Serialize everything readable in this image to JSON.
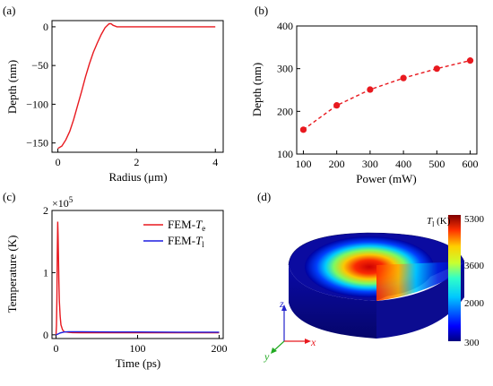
{
  "panels": {
    "a": "(a)",
    "b": "(b)",
    "c": "(c)",
    "d": "(d)"
  },
  "chart_data": [
    {
      "type": "line",
      "panel": "(a)",
      "xlabel": "Radius (μm)",
      "ylabel": "Depth (nm)",
      "xlim": [
        -0.15,
        4.2
      ],
      "ylim": [
        -162,
        8
      ],
      "xticks": [
        "0",
        "2",
        "4"
      ],
      "yticks": [
        "0",
        "−50",
        "−100",
        "−150"
      ],
      "color": "#e8191f",
      "series": [
        {
          "x": [
            0,
            0.1,
            0.2,
            0.3,
            0.4,
            0.5,
            0.6,
            0.7,
            0.8,
            0.9,
            1.0,
            1.1,
            1.2,
            1.3,
            1.35,
            1.4,
            1.5,
            1.6,
            2.0,
            3.0,
            4.0
          ],
          "y": [
            -157,
            -154,
            -146,
            -135,
            -120,
            -102,
            -84,
            -65,
            -48,
            -33,
            -21,
            -10,
            -1,
            4,
            4,
            2,
            0,
            0,
            0,
            0,
            0
          ]
        }
      ]
    },
    {
      "type": "line",
      "panel": "(b)",
      "xlabel": "Power (mW)",
      "ylabel": "Depth (nm)",
      "xlim": [
        80,
        620
      ],
      "ylim": [
        100,
        400
      ],
      "xticks": [
        "100",
        "200",
        "300",
        "400",
        "500",
        "600"
      ],
      "yticks": [
        "100",
        "200",
        "300",
        "400"
      ],
      "color": "#e8191f",
      "series": [
        {
          "x": [
            100,
            200,
            300,
            400,
            500,
            600
          ],
          "y": [
            157,
            214,
            251,
            278,
            300,
            319
          ]
        }
      ]
    },
    {
      "type": "line",
      "panel": "(c)",
      "xlabel": "Time (ps)",
      "ylabel": "Temperature (K)",
      "multiplier": "×10",
      "multiplier_exp": "5",
      "xlim": [
        -5,
        205
      ],
      "ylim": [
        -0.06,
        2.0
      ],
      "xticks": [
        "0",
        "100",
        "200"
      ],
      "yticks": [
        "0",
        "1",
        "2"
      ],
      "legend_position": "top-right",
      "series": [
        {
          "name": "FEM-Te",
          "legend_prefix": "FEM-",
          "legend_var": "T",
          "legend_sub": "e",
          "color": "#e8191f",
          "x": [
            0,
            0.5,
            1.0,
            1.5,
            2.0,
            2.5,
            3.0,
            3.5,
            4.0,
            5.0,
            6.0,
            8.0,
            10.0,
            15.0,
            20.0,
            30.0,
            50.0,
            100.0,
            150.0,
            200.0
          ],
          "y": [
            0.0,
            0.15,
            0.6,
            1.3,
            1.82,
            1.6,
            1.2,
            0.85,
            0.55,
            0.3,
            0.16,
            0.08,
            0.05,
            0.04,
            0.035,
            0.033,
            0.032,
            0.032,
            0.032,
            0.032
          ]
        },
        {
          "name": "FEM-Tl",
          "legend_prefix": "FEM-",
          "legend_var": "T",
          "legend_sub": "l",
          "color": "#1c1ce0",
          "x": [
            0,
            2,
            5,
            10,
            15,
            20,
            30,
            50,
            100,
            150,
            200
          ],
          "y": [
            0.0,
            0.01,
            0.03,
            0.045,
            0.05,
            0.05,
            0.049,
            0.047,
            0.045,
            0.043,
            0.042
          ]
        }
      ]
    },
    {
      "type": "heatmap",
      "panel": "(d)",
      "colorbar_label_var": "T",
      "colorbar_label_sub": "l",
      "colorbar_label_unit": " (K)",
      "colorbar_ticks": [
        "5300",
        "3600",
        "2000",
        "300"
      ],
      "axes": [
        "z",
        "x",
        "y"
      ],
      "colors": {
        "z": "#2222cc",
        "x": "#e8191f",
        "y": "#22aa22"
      }
    }
  ]
}
